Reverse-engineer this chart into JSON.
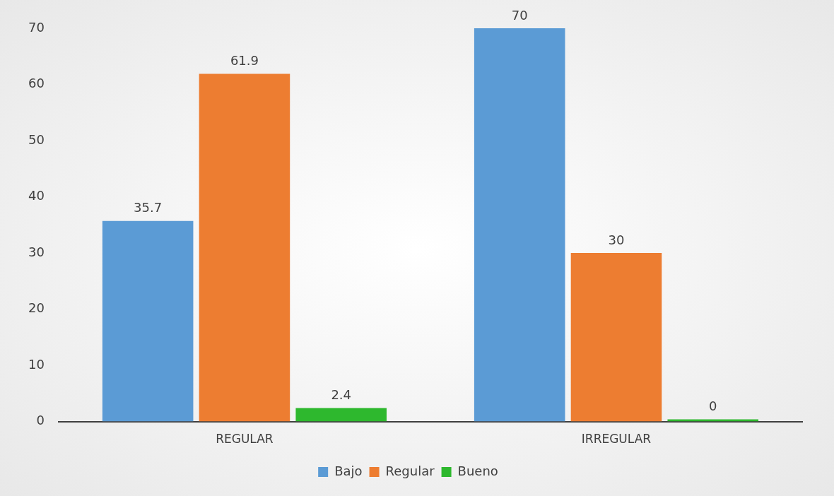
{
  "chart_data": {
    "type": "bar",
    "categories": [
      "REGULAR",
      "IRREGULAR"
    ],
    "series": [
      {
        "name": "Bajo",
        "color": "#5b9bd5",
        "values": [
          35.7,
          70
        ]
      },
      {
        "name": "Regular",
        "color": "#ed7d31",
        "values": [
          61.9,
          30
        ]
      },
      {
        "name": "Bueno",
        "color": "#2eb82e",
        "values": [
          2.4,
          0
        ]
      }
    ],
    "ylim": [
      0,
      70
    ],
    "yticks": [
      0,
      10,
      20,
      30,
      40,
      50,
      60,
      70
    ],
    "grid": false,
    "legend": "bottom",
    "data_labels": true
  }
}
